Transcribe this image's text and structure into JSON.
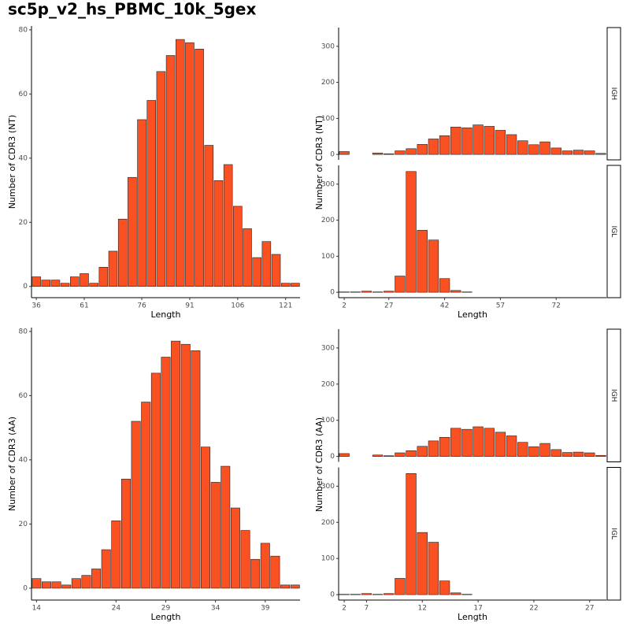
{
  "title": "sc5p_v2_hs_PBMC_10k_5gex",
  "chart_data": [
    {
      "type": "bar",
      "xlabel": "Length",
      "ylabel": "Number of CDR3 (NT)",
      "color": "#fa5123",
      "categories": [
        "36",
        null,
        null,
        null,
        null,
        "61",
        null,
        null,
        null,
        null,
        null,
        "76",
        null,
        null,
        null,
        null,
        "91",
        null,
        null,
        null,
        null,
        "106",
        null,
        null,
        null,
        null,
        "121",
        null
      ],
      "values": [
        3,
        2,
        2,
        1,
        3,
        4,
        1,
        6,
        11,
        21,
        34,
        52,
        58,
        67,
        72,
        77,
        76,
        74,
        44,
        33,
        38,
        25,
        18,
        9,
        14,
        10,
        1,
        1
      ],
      "ylim": [
        -3.5,
        81.2
      ],
      "yticks": [
        0,
        20,
        40,
        60,
        80
      ]
    },
    {
      "type": "bar",
      "xlabel": "Length",
      "ylabel": "Number of CDR3 (NT)",
      "color": "#fa5123",
      "categories": [
        "2",
        null,
        null,
        null,
        "27",
        null,
        null,
        null,
        null,
        "42",
        null,
        null,
        null,
        null,
        "57",
        null,
        null,
        null,
        null,
        "72",
        null,
        null,
        null,
        null
      ],
      "series": [
        {
          "name": "IGH",
          "values": [
            8,
            null,
            null,
            4,
            2,
            10,
            16,
            28,
            43,
            52,
            76,
            74,
            82,
            78,
            67,
            55,
            38,
            27,
            35,
            18,
            10,
            12,
            10,
            3
          ]
        },
        {
          "name": "IGL",
          "values": [
            1,
            1,
            3,
            1,
            3,
            45,
            335,
            172,
            145,
            38,
            5,
            1,
            null,
            null,
            null,
            null,
            null,
            null,
            null,
            null,
            null,
            null,
            null,
            null
          ]
        }
      ],
      "ylim": [
        -15,
        352
      ],
      "yticks": [
        0,
        100,
        200,
        300
      ]
    },
    {
      "type": "bar",
      "xlabel": "Length",
      "ylabel": "Number of CDR3 (AA)",
      "color": "#fa5123",
      "categories": [
        "14",
        null,
        null,
        null,
        null,
        null,
        null,
        null,
        "24",
        null,
        null,
        null,
        null,
        "29",
        null,
        null,
        null,
        null,
        "34",
        null,
        null,
        null,
        null,
        "39",
        null,
        null,
        null
      ],
      "values": [
        3,
        2,
        2,
        1,
        3,
        4,
        6,
        12,
        21,
        34,
        52,
        58,
        67,
        72,
        77,
        76,
        74,
        44,
        33,
        38,
        25,
        18,
        9,
        14,
        10,
        1,
        1
      ],
      "ylim": [
        -3.7,
        81.2
      ],
      "yticks": [
        0,
        20,
        40,
        60,
        80
      ]
    },
    {
      "type": "bar",
      "xlabel": "Length",
      "ylabel": "Number of CDR3 (AA)",
      "color": "#fa5123",
      "categories": [
        "2",
        null,
        "7",
        null,
        null,
        null,
        null,
        "12",
        null,
        null,
        null,
        null,
        "17",
        null,
        null,
        null,
        null,
        "22",
        null,
        null,
        null,
        null,
        "27",
        null
      ],
      "series": [
        {
          "name": "IGH",
          "values": [
            8,
            null,
            null,
            4,
            2,
            10,
            16,
            28,
            43,
            53,
            78,
            75,
            82,
            78,
            67,
            57,
            39,
            27,
            36,
            19,
            11,
            12,
            10,
            3
          ]
        },
        {
          "name": "IGL",
          "values": [
            1,
            1,
            3,
            1,
            3,
            45,
            335,
            172,
            145,
            38,
            5,
            1,
            null,
            null,
            null,
            null,
            null,
            null,
            null,
            null,
            null,
            null,
            null,
            null
          ]
        }
      ],
      "ylim": [
        -15,
        352
      ],
      "yticks": [
        0,
        100,
        200,
        300
      ]
    }
  ]
}
